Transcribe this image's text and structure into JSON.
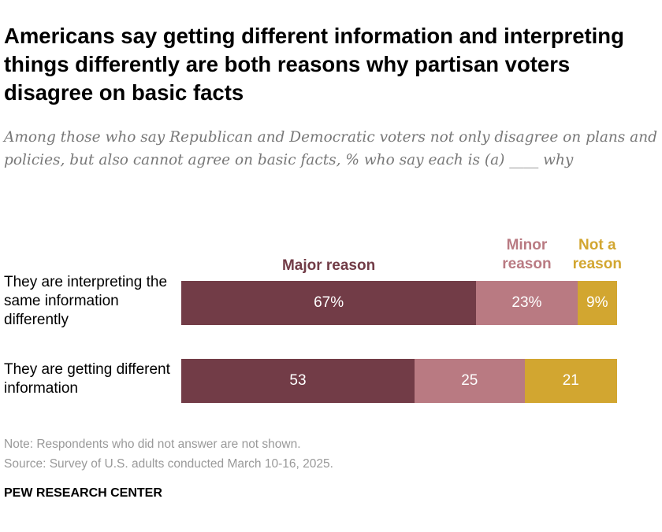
{
  "title": "Americans say getting different information and interpreting things differently are both reasons why partisan voters disagree on basic facts",
  "subtitle": "Among those who say Republican and Democratic voters not only disagree on plans and policies, but also cannot agree on basic facts, % who say each is (a) ____ why",
  "chart_data": {
    "type": "bar",
    "orientation": "horizontal-stacked",
    "categories": [
      "They are interpreting the same information differently",
      "They are getting different information"
    ],
    "series": [
      {
        "name": "Major reason",
        "values": [
          67,
          53
        ],
        "labels": [
          "67%",
          "53"
        ],
        "color": "#723c47"
      },
      {
        "name": "Minor reason",
        "values": [
          23,
          25
        ],
        "labels": [
          "23%",
          "25"
        ],
        "color": "#b97a82"
      },
      {
        "name": "Not a reason",
        "values": [
          9,
          21
        ],
        "labels": [
          "9%",
          "21"
        ],
        "color": "#d2a630"
      }
    ],
    "xlim": [
      0,
      100
    ],
    "grid": false,
    "legend": "top"
  },
  "note": "Note: Respondents who did not answer are not shown.",
  "source": "Source: Survey of U.S. adults conducted March 10-16, 2025.",
  "brand": "PEW RESEARCH CENTER"
}
